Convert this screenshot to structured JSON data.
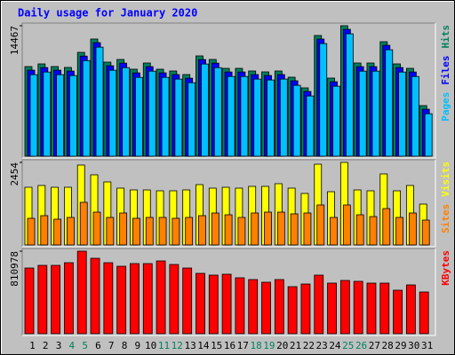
{
  "title": "Daily usage for January 2020",
  "categories": [
    "1",
    "2",
    "3",
    "4",
    "5",
    "6",
    "7",
    "8",
    "9",
    "10",
    "11",
    "12",
    "13",
    "14",
    "15",
    "16",
    "17",
    "18",
    "19",
    "20",
    "21",
    "22",
    "23",
    "24",
    "25",
    "26",
    "27",
    "28",
    "29",
    "30",
    "31"
  ],
  "category_colors": [
    "#000000",
    "#000000",
    "#000000",
    "#00805c",
    "#00805c",
    "#000000",
    "#000000",
    "#000000",
    "#000000",
    "#000000",
    "#00805c",
    "#00805c",
    "#000000",
    "#000000",
    "#000000",
    "#000000",
    "#000000",
    "#00805c",
    "#00805c",
    "#000000",
    "#000000",
    "#000000",
    "#000000",
    "#000000",
    "#00805c",
    "#00805c",
    "#000000",
    "#000000",
    "#000000",
    "#000000",
    "#000000"
  ],
  "chart_data": [
    {
      "type": "bar",
      "ylim": [
        0,
        14467
      ],
      "yticks": [
        14467
      ],
      "series": [
        {
          "name": "Hits",
          "color": "#00805c",
          "values": [
            9940,
            10235,
            9940,
            9842,
            11515,
            12991,
            10432,
            10727,
            9645,
            10334,
            9645,
            9448,
            9054,
            11121,
            10727,
            9743,
            9743,
            9448,
            9350,
            9448,
            8759,
            7578,
            13385,
            8661,
            14467,
            10334,
            10334,
            12696,
            10235,
            9743,
            5610
          ]
        },
        {
          "name": "Files",
          "color": "#0000ff",
          "values": [
            9540,
            9830,
            9540,
            9440,
            11100,
            12590,
            10030,
            10320,
            9240,
            9930,
            9240,
            9050,
            8650,
            10720,
            10320,
            9340,
            9340,
            9050,
            8950,
            9050,
            8360,
            7180,
            12990,
            8260,
            14070,
            9930,
            9930,
            12300,
            9830,
            9340,
            5210
          ]
        },
        {
          "name": "Pages",
          "color": "#00c0ff",
          "values": [
            9040,
            9330,
            9040,
            8940,
            10600,
            12090,
            9530,
            9820,
            8740,
            9430,
            8740,
            8550,
            8150,
            10220,
            9820,
            8840,
            8840,
            8550,
            8450,
            8550,
            7860,
            6680,
            12490,
            7760,
            13570,
            9430,
            9430,
            11800,
            9330,
            8840,
            4710
          ]
        }
      ]
    },
    {
      "type": "bar",
      "ylim": [
        0,
        2454
      ],
      "yticks": [
        2454
      ],
      "series": [
        {
          "name": "Visits",
          "color": "#ffff00",
          "values": [
            1715,
            1768,
            1715,
            1715,
            2375,
            2085,
            1874,
            1689,
            1636,
            1636,
            1610,
            1610,
            1636,
            1794,
            1689,
            1715,
            1689,
            1742,
            1742,
            1821,
            1689,
            1531,
            2401,
            1583,
            2454,
            1636,
            1610,
            2111,
            1610,
            1768,
            1214
          ]
        },
        {
          "name": "Sites",
          "color": "#ff8000",
          "values": [
            792,
            871,
            765,
            818,
            1267,
            976,
            818,
            950,
            792,
            818,
            818,
            792,
            818,
            871,
            950,
            897,
            818,
            950,
            976,
            976,
            924,
            950,
            1188,
            818,
            1188,
            897,
            844,
            1082,
            818,
            950,
            739
          ]
        }
      ]
    },
    {
      "type": "bar",
      "ylim": [
        0,
        810978
      ],
      "yticks": [
        810978
      ],
      "series": [
        {
          "name": "KBytes",
          "color": "#ff0000",
          "values": [
            645280,
            671440,
            671440,
            697600,
            810978,
            741200,
            697600,
            662720,
            688880,
            688880,
            715040,
            680160,
            645280,
            592960,
            575520,
            584240,
            549360,
            531920,
            505760,
            531920,
            462160,
            488320,
            575520,
            497040,
            523200,
            514480,
            497040,
            497040,
            427280,
            479600,
            409840
          ]
        }
      ]
    }
  ]
}
